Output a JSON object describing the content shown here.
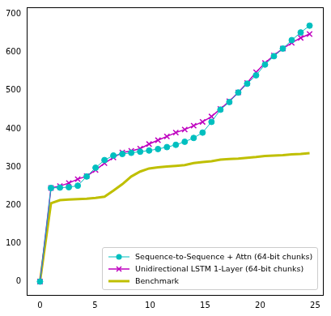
{
  "chart_data": {
    "type": "line",
    "x": [
      0,
      1.0,
      1.81,
      2.62,
      3.43,
      4.24,
      5.05,
      5.86,
      6.67,
      7.48,
      8.29,
      9.1,
      9.91,
      10.72,
      11.53,
      12.34,
      13.15,
      13.96,
      14.77,
      15.58,
      16.39,
      17.2,
      18.01,
      18.82,
      19.63,
      20.44,
      21.25,
      22.06,
      22.87,
      23.68,
      24.49
    ],
    "series": [
      {
        "name": "Sequence-to-Sequence + Attn (64-bit chunks)",
        "color": "#00bfbf",
        "marker": "circle",
        "values": [
          0,
          245,
          246,
          247,
          251,
          275,
          298,
          318,
          330,
          334,
          337,
          340,
          343,
          347,
          352,
          358,
          366,
          376,
          390,
          418,
          450,
          470,
          495,
          518,
          540,
          568,
          590,
          610,
          632,
          652,
          670
        ]
      },
      {
        "name": "Unidirectional LSTM 1-Layer (64-bit chunks)",
        "color": "#bf00bf",
        "marker": "x",
        "values": [
          0,
          245,
          250,
          258,
          268,
          276,
          292,
          310,
          325,
          338,
          342,
          348,
          360,
          370,
          380,
          390,
          398,
          408,
          418,
          432,
          452,
          472,
          495,
          520,
          548,
          572,
          592,
          610,
          625,
          638,
          648
        ]
      },
      {
        "name": "Benchmark",
        "color": "#bfbf00",
        "values": [
          0,
          205,
          213,
          215,
          216,
          217,
          219,
          222,
          238,
          255,
          275,
          288,
          296,
          299,
          301,
          303,
          305,
          310,
          313,
          315,
          319,
          321,
          322,
          324,
          326,
          329,
          330,
          331,
          333,
          334,
          336
        ]
      }
    ],
    "xlim": [
      -1.2,
      25.7
    ],
    "xticks": [
      0,
      5,
      10,
      15,
      20,
      25
    ],
    "ylim": [
      -35,
      718
    ],
    "yticks": [
      0,
      100,
      200,
      300,
      400,
      500,
      600,
      700
    ],
    "grid": false,
    "legend": "lower right"
  }
}
